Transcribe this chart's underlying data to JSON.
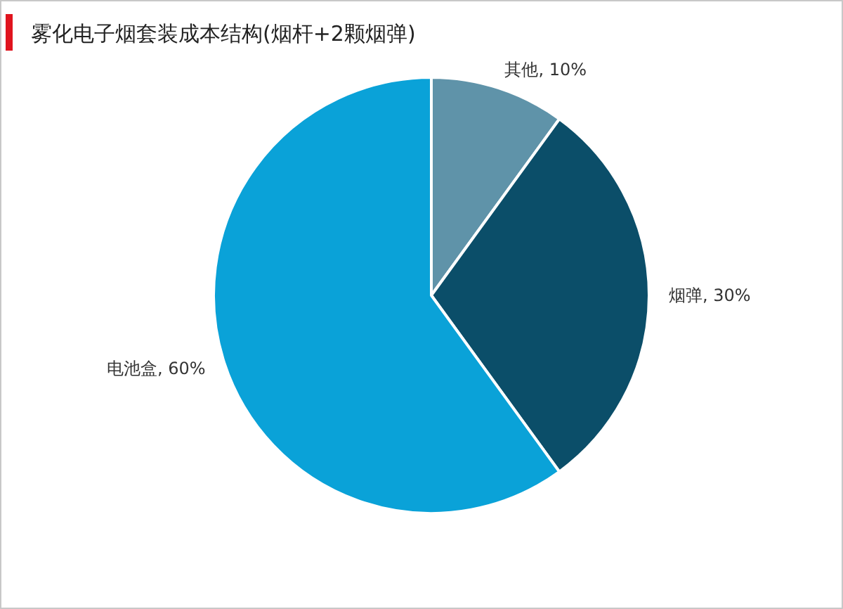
{
  "chart_data": {
    "type": "pie",
    "title": "雾化电子烟套装成本结构(烟杆+2颗烟弹)",
    "categories": [
      "其他",
      "烟弹",
      "电池盒"
    ],
    "values": [
      10,
      30,
      60
    ],
    "colors": [
      "#5f93a9",
      "#0b4e69",
      "#0aa2d8"
    ],
    "legend": false,
    "value_labels": [
      ", 10%",
      ", 30%",
      ", 60%"
    ]
  }
}
